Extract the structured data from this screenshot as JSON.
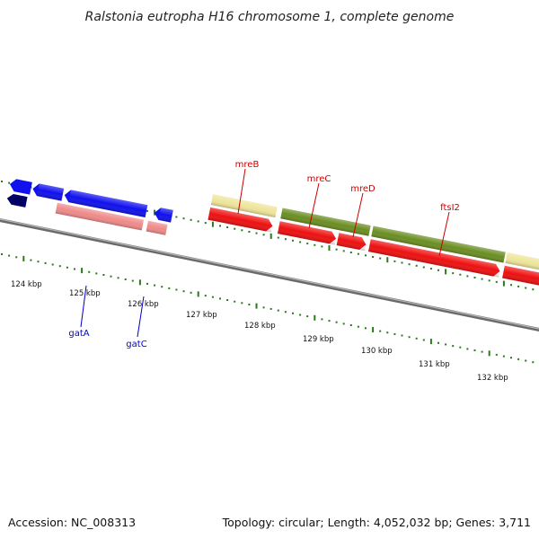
{
  "title": "Ralstonia eutropha H16 chromosome 1, complete genome",
  "accession": "Accession: NC_008313",
  "summary": "Topology: circular; Length: 4,052,032 bp; Genes: 3,711",
  "colors": {
    "backbone": "#888888",
    "tick": "#2a7a1a",
    "label_top": "#cc0000",
    "label_bottom": "#0000cc",
    "cds_red": "#ee1111",
    "cds_blue": "#1111ee",
    "cds_navy": "#000066",
    "gene_khaki": "#eee59a",
    "gene_olive": "#6b8e23",
    "gene_pink": "#ef8a8a"
  },
  "scale_labels": [
    "124 kbp",
    "125 kbp",
    "126 kbp",
    "127 kbp",
    "128 kbp",
    "129 kbp",
    "130 kbp",
    "131 kbp",
    "132 kbp"
  ],
  "gene_labels_top": [
    {
      "label": "mreB"
    },
    {
      "label": "mreC"
    },
    {
      "label": "mreD"
    },
    {
      "label": "ftsI2"
    }
  ],
  "gene_labels_bottom": [
    {
      "label": "gatA"
    },
    {
      "label": "gatC"
    }
  ]
}
